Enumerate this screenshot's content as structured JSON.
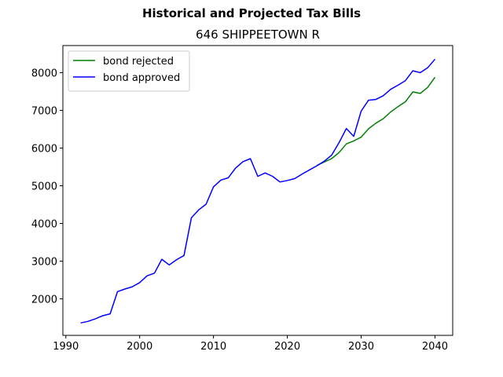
{
  "figure": {
    "suptitle": "Historical and Projected Tax Bills"
  },
  "chart_data": {
    "type": "line",
    "title": "646 SHIPPEETOWN R",
    "xlabel": "",
    "ylabel": "",
    "xlim": [
      1989.6,
      2042.4
    ],
    "ylim": [
      1030,
      8720
    ],
    "xticks": [
      1990,
      2000,
      2010,
      2020,
      2030,
      2040
    ],
    "yticks": [
      2000,
      3000,
      4000,
      5000,
      6000,
      7000,
      8000
    ],
    "legend": "top-left",
    "grid": false,
    "series": [
      {
        "name": "bond rejected",
        "color": "#008000",
        "x": [
          2024,
          2025,
          2026,
          2027,
          2028,
          2029,
          2030,
          2031,
          2032,
          2033,
          2034,
          2035,
          2036,
          2037,
          2038,
          2039,
          2040
        ],
        "y": [
          5540,
          5630,
          5720,
          5880,
          6110,
          6190,
          6290,
          6510,
          6660,
          6780,
          6960,
          7100,
          7230,
          7490,
          7450,
          7610,
          7880
        ]
      },
      {
        "name": "bond approved",
        "color": "#0000ff",
        "x": [
          1992,
          1993,
          1994,
          1995,
          1996,
          1997,
          1998,
          1999,
          2000,
          2001,
          2002,
          2003,
          2004,
          2005,
          2006,
          2007,
          2008,
          2009,
          2010,
          2011,
          2012,
          2013,
          2014,
          2015,
          2016,
          2017,
          2018,
          2019,
          2020,
          2021,
          2022,
          2023,
          2024,
          2025,
          2026,
          2027,
          2028,
          2029,
          2030,
          2031,
          2032,
          2033,
          2034,
          2035,
          2036,
          2037,
          2038,
          2039,
          2040
        ],
        "y": [
          1360,
          1400,
          1470,
          1550,
          1600,
          2190,
          2260,
          2320,
          2430,
          2610,
          2680,
          3050,
          2900,
          3040,
          3150,
          4150,
          4360,
          4510,
          4970,
          5150,
          5210,
          5470,
          5640,
          5720,
          5250,
          5340,
          5250,
          5100,
          5140,
          5190,
          5310,
          5420,
          5530,
          5650,
          5810,
          6140,
          6520,
          6310,
          6980,
          7270,
          7290,
          7390,
          7560,
          7670,
          7790,
          8050,
          8000,
          8130,
          8360
        ]
      }
    ]
  }
}
